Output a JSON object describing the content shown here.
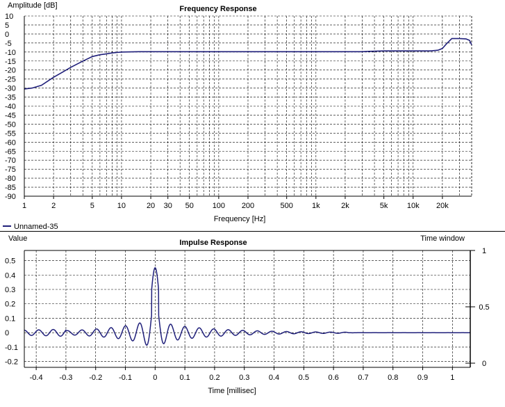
{
  "chart_data": [
    {
      "type": "line",
      "title": "Frequency Response",
      "xlabel": "Frequency [Hz]",
      "ylabel": "Amplitude [dB]",
      "x_scale": "log",
      "xlim": [
        1,
        40000
      ],
      "ylim": [
        -90,
        10
      ],
      "grid": true,
      "x_ticks": [
        1,
        2,
        5,
        10,
        20,
        30,
        50,
        100,
        200,
        500,
        1000,
        2000,
        5000,
        10000,
        20000
      ],
      "x_tick_labels": [
        "1",
        "2",
        "5",
        "10",
        "20",
        "30",
        "50",
        "100",
        "200",
        "500",
        "1k",
        "2k",
        "5k",
        "10k",
        "20k"
      ],
      "y_ticks": [
        10,
        5,
        0,
        -5,
        -10,
        -15,
        -20,
        -25,
        -30,
        -35,
        -40,
        -45,
        -50,
        -55,
        -60,
        -65,
        -70,
        -75,
        -80,
        -85,
        -90
      ],
      "y_tick_labels": [
        "10",
        "5",
        "0",
        "-5",
        "-10",
        "-15",
        "-20",
        "-25",
        "-30",
        "-35",
        "-40",
        "-45",
        "-50",
        "-55",
        "-60",
        "-65",
        "-70",
        "-75",
        "-80",
        "-85",
        "-90"
      ],
      "legend_position": "bottom-left",
      "series": [
        {
          "name": "Unnamed-35",
          "color": "#1f1f7a",
          "x": [
            1,
            1.2,
            1.5,
            2,
            2.5,
            3,
            4,
            5,
            6,
            7,
            8,
            10,
            15,
            20,
            50,
            100,
            500,
            1000,
            2000,
            3000,
            3500,
            5000,
            10000,
            15000,
            18000,
            20000,
            22000,
            25000,
            30000,
            35000,
            38000,
            40000
          ],
          "y": [
            -30.5,
            -30,
            -28.5,
            -24,
            -21,
            -18.5,
            -15,
            -12.5,
            -11.5,
            -11,
            -10.5,
            -10,
            -9.8,
            -9.8,
            -9.8,
            -9.8,
            -9.8,
            -9.8,
            -9.8,
            -9.8,
            -9.6,
            -9.4,
            -9.4,
            -9.4,
            -9,
            -8,
            -5.5,
            -2.5,
            -2.5,
            -2.7,
            -3.5,
            -6
          ]
        }
      ]
    },
    {
      "type": "line",
      "title": "Impulse Response",
      "xlabel": "Time [millisec]",
      "ylabel": "Value",
      "y2label": "Time window",
      "xlim": [
        -0.44,
        1.06
      ],
      "ylim": [
        -0.24,
        0.57
      ],
      "y2lim": [
        0,
        1
      ],
      "grid": true,
      "x_ticks": [
        -0.4,
        -0.3,
        -0.2,
        -0.1,
        0,
        0.1,
        0.2,
        0.3,
        0.4,
        0.5,
        0.6,
        0.7,
        0.8,
        0.9,
        1
      ],
      "x_tick_labels": [
        "-0.4",
        "-0.3",
        "-0.2",
        "-0.1",
        "0",
        "0.1",
        "0.2",
        "0.3",
        "0.4",
        "0.5",
        "0.6",
        "0.7",
        "0.8",
        "0.9",
        "1"
      ],
      "y_ticks": [
        0.5,
        0.4,
        0.3,
        0.2,
        0.1,
        0,
        -0.1,
        -0.2
      ],
      "y_tick_labels": [
        "0.5",
        "0.4",
        "0.3",
        "0.2",
        "0.1",
        "0",
        "-0.1",
        "-0.2"
      ],
      "y2_ticks": [
        1,
        0.5,
        0
      ],
      "y2_tick_labels": [
        "1",
        "0.5",
        "0"
      ],
      "series": [
        {
          "color": "#1f1f7a",
          "x": [
            -0.44,
            -0.0077,
            0,
            0.0077,
            1.06
          ],
          "y": [
            0,
            -0.163,
            0.45,
            -0.163,
            0
          ],
          "waveform": "sinc-like ringing, center frequency ~20.5 kHz, peak 0.45 at t=0, envelope decaying with |t|, side-lobe amplitude ~0.19 near t=±0.03 ms, ~0.02 by t=-0.4 ms and near 0 after t=0.65 ms"
        }
      ],
      "time_window": {
        "x": [
          -0.44,
          1.06
        ],
        "y": [
          1,
          1
        ],
        "color": "#000000"
      }
    }
  ]
}
